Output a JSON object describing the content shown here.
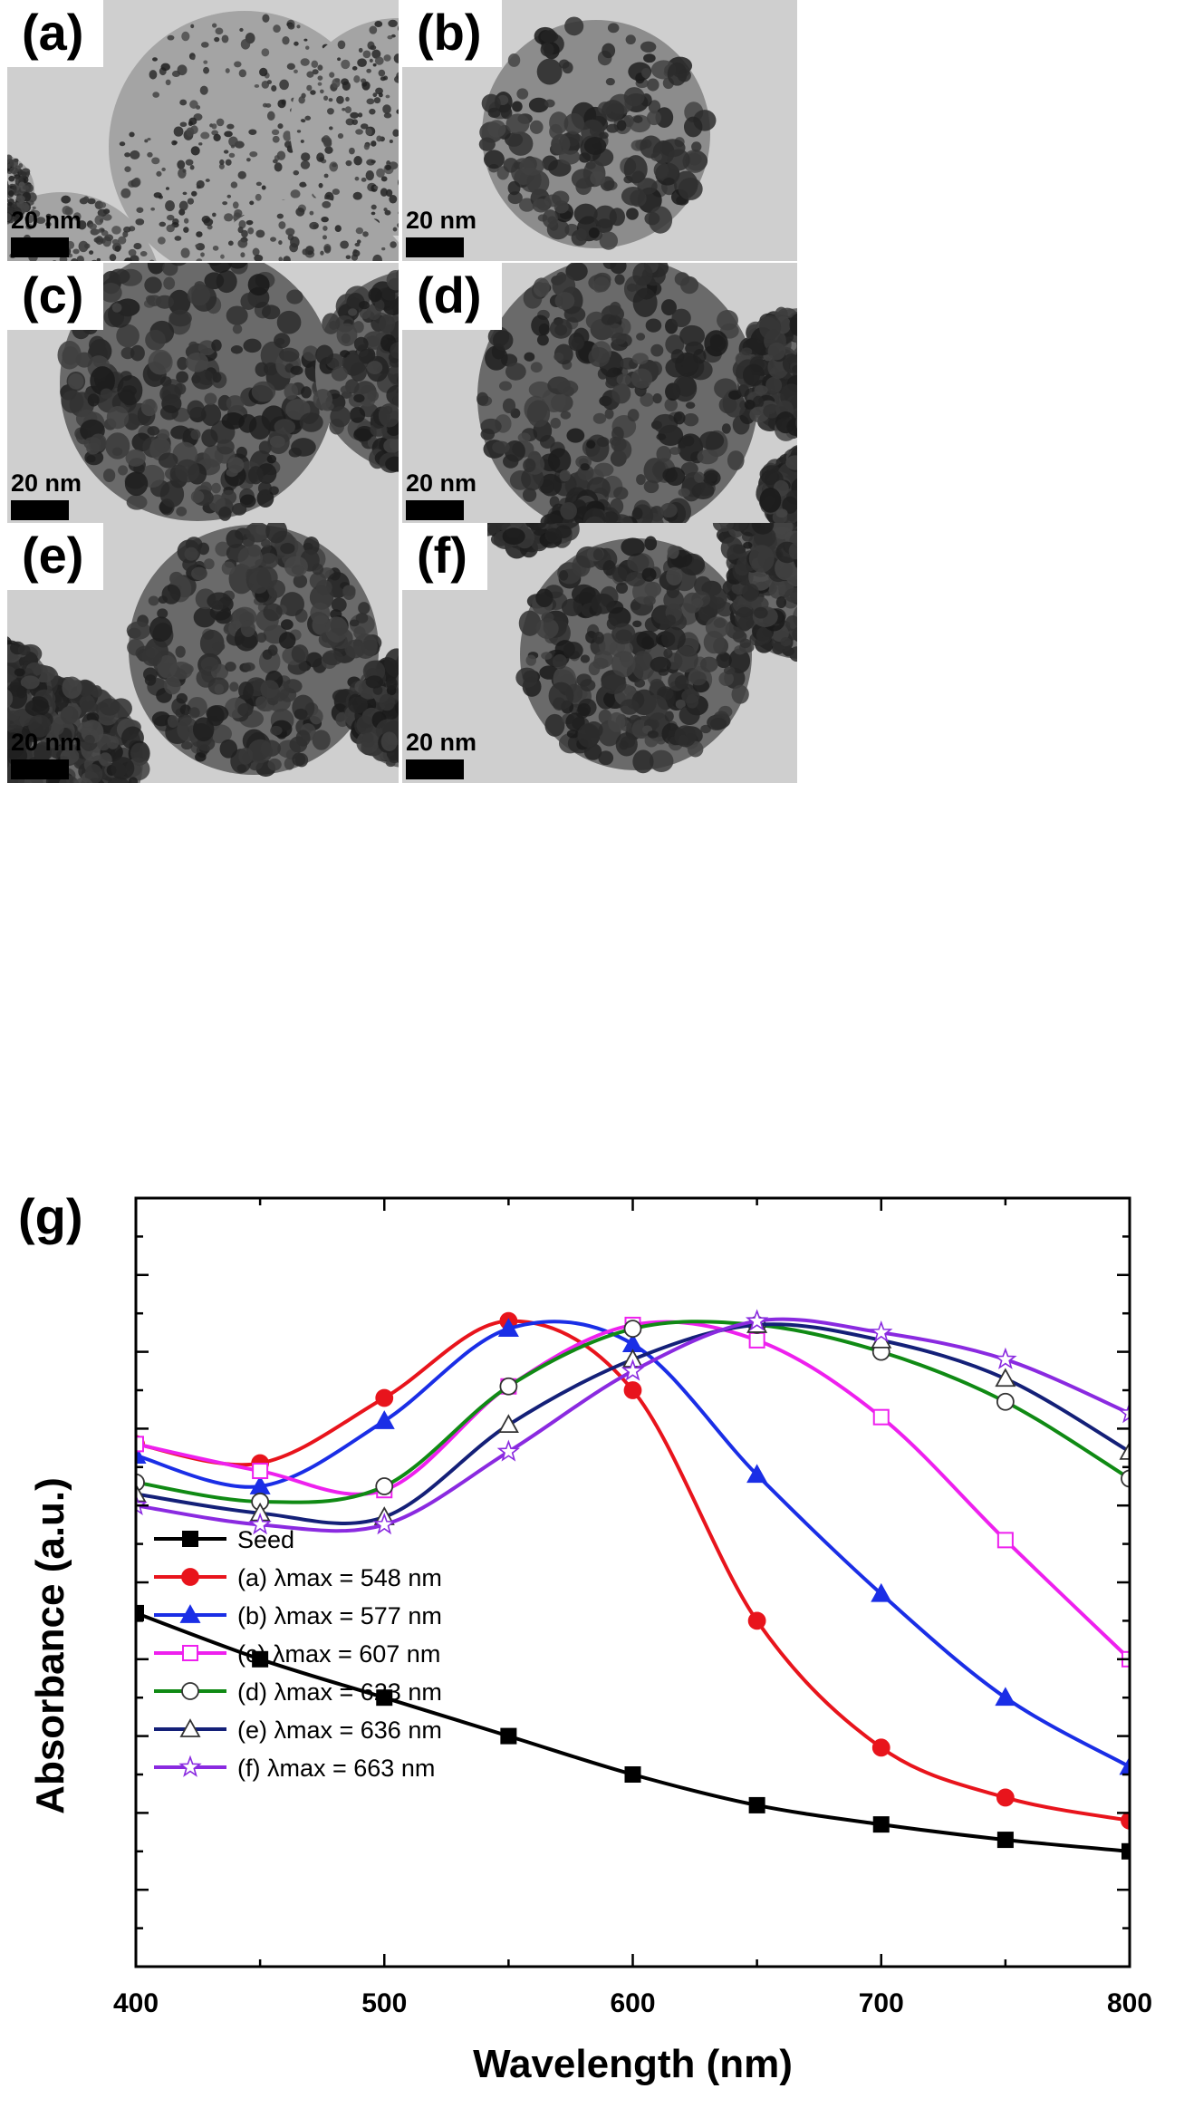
{
  "panels": [
    {
      "label": "(a)",
      "scale": "20 nm"
    },
    {
      "label": "(b)",
      "scale": "20 nm"
    },
    {
      "label": "(c)",
      "scale": "20 nm"
    },
    {
      "label": "(d)",
      "scale": "20 nm"
    },
    {
      "label": "(e)",
      "scale": "20 nm"
    },
    {
      "label": "(f)",
      "scale": "20 nm"
    }
  ],
  "chart_data": {
    "type": "line",
    "panel_label": "(g)",
    "xlabel": "Wavelength (nm)",
    "ylabel": "Absorbance (a.u.)",
    "xlim": [
      400,
      800
    ],
    "ylim": [
      0,
      1.0
    ],
    "x_ticks": [
      400,
      500,
      600,
      700,
      800
    ],
    "x": [
      400,
      450,
      500,
      550,
      600,
      650,
      700,
      750,
      800
    ],
    "y_tick_labels_shown": false,
    "grid": false,
    "legend_position": "bottom-left",
    "series": [
      {
        "name": "Seed",
        "color": "#000000",
        "marker": "square-filled",
        "values": [
          0.46,
          0.4,
          0.35,
          0.3,
          0.25,
          0.21,
          0.185,
          0.165,
          0.15
        ]
      },
      {
        "name": "(a) λmax = 548 nm",
        "color": "#e8141c",
        "marker": "circle-filled",
        "values": [
          0.68,
          0.655,
          0.74,
          0.84,
          0.75,
          0.45,
          0.285,
          0.22,
          0.19
        ]
      },
      {
        "name": "(b) λmax = 577 nm",
        "color": "#1a2ee6",
        "marker": "triangle-filled",
        "values": [
          0.665,
          0.625,
          0.71,
          0.83,
          0.81,
          0.64,
          0.485,
          0.35,
          0.26
        ]
      },
      {
        "name": "(c) λmax = 607 nm",
        "color": "#ee20ee",
        "marker": "square-open",
        "values": [
          0.68,
          0.645,
          0.62,
          0.755,
          0.835,
          0.815,
          0.715,
          0.555,
          0.4
        ]
      },
      {
        "name": "(d) λmax = 623 nm",
        "color": "#108a14",
        "marker": "circle-open",
        "values": [
          0.63,
          0.605,
          0.625,
          0.755,
          0.83,
          0.835,
          0.8,
          0.735,
          0.635
        ]
      },
      {
        "name": "(e) λmax = 636 nm",
        "color": "#142078",
        "marker": "triangle-open",
        "values": [
          0.615,
          0.59,
          0.585,
          0.705,
          0.79,
          0.835,
          0.815,
          0.765,
          0.67
        ]
      },
      {
        "name": "(f)  λmax = 663 nm",
        "color": "#8a2ae0",
        "marker": "star-open",
        "values": [
          0.6,
          0.575,
          0.575,
          0.67,
          0.775,
          0.84,
          0.825,
          0.79,
          0.72
        ]
      }
    ]
  }
}
